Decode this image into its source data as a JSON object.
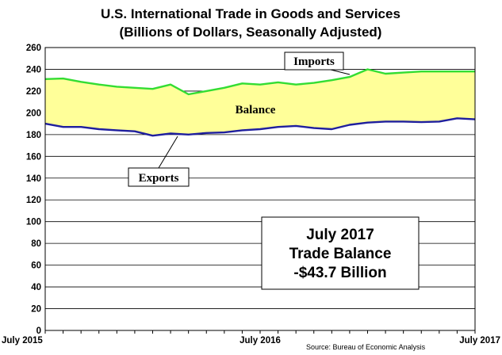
{
  "chart_data": {
    "type": "area",
    "title": "U.S. International Trade in Goods and Services",
    "subtitle": "(Billions of Dollars, Seasonally Adjusted)",
    "x": [
      "Jul 2015",
      "Aug 2015",
      "Sep 2015",
      "Oct 2015",
      "Nov 2015",
      "Dec 2015",
      "Jan 2016",
      "Feb 2016",
      "Mar 2016",
      "Apr 2016",
      "May 2016",
      "Jun 2016",
      "Jul 2016",
      "Aug 2016",
      "Sep 2016",
      "Oct 2016",
      "Nov 2016",
      "Dec 2016",
      "Jan 2017",
      "Feb 2017",
      "Mar 2017",
      "Apr 2017",
      "May 2017",
      "Jun 2017",
      "Jul 2017"
    ],
    "x_tick_labels": [
      {
        "index": 0,
        "label": "July 2015"
      },
      {
        "index": 12,
        "label": "July 2016"
      },
      {
        "index": 24,
        "label": "July 2017"
      }
    ],
    "ylim": [
      0,
      260
    ],
    "yticks": [
      0,
      20,
      40,
      60,
      80,
      100,
      120,
      140,
      160,
      180,
      200,
      220,
      240,
      260
    ],
    "grid": {
      "y": true,
      "x": false
    },
    "series": [
      {
        "name": "Imports",
        "color": "#33dd33",
        "values": [
          231,
          231.5,
          228.5,
          226,
          224,
          223,
          222,
          226,
          217,
          220,
          223,
          227,
          226,
          228,
          226,
          227.5,
          230,
          233,
          240,
          236,
          237,
          238,
          238,
          238,
          238
        ]
      },
      {
        "name": "Exports",
        "color": "#1f1f9e",
        "values": [
          190,
          187,
          187,
          185,
          184,
          183,
          179,
          181,
          180,
          181.5,
          182,
          184,
          185,
          187,
          188,
          186,
          185,
          189,
          191,
          192,
          192,
          191.5,
          192,
          195,
          194
        ]
      }
    ],
    "fill_color": "#ffff99",
    "fill_label": "Balance",
    "annotation": {
      "lines": [
        "July 2017",
        "Trade Balance",
        "-$43.7 Billion"
      ],
      "placement": "bottom-right"
    }
  },
  "source_text": "Source: Bureau of Economic Analysis"
}
